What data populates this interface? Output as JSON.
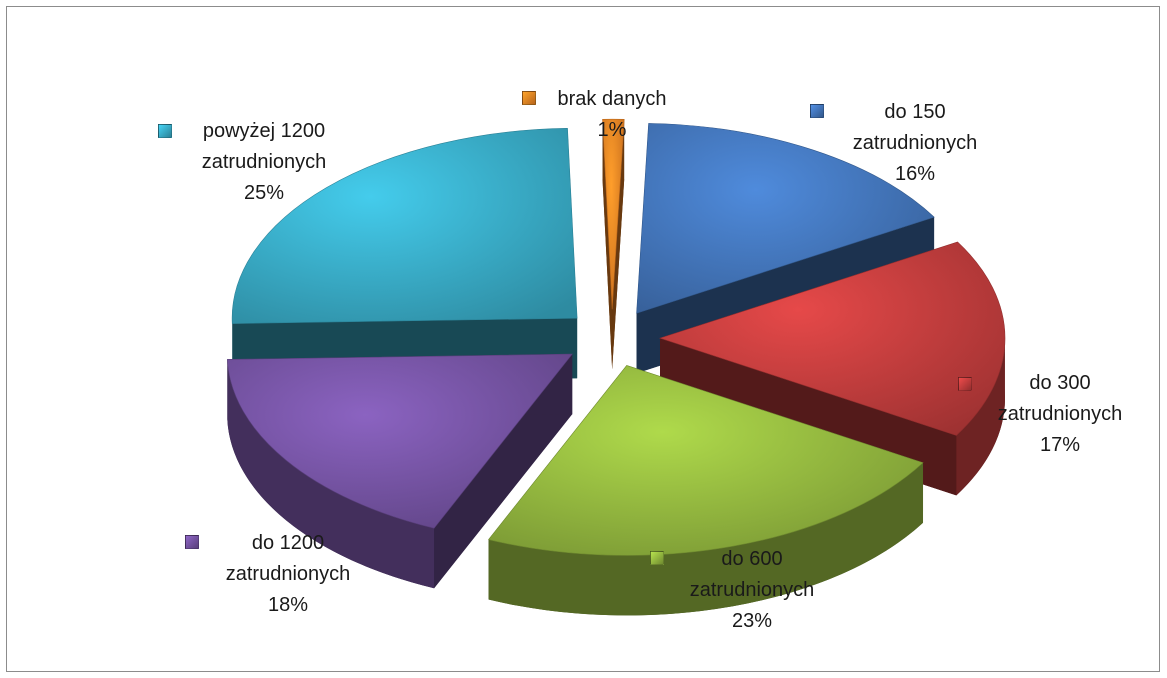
{
  "chart_data": {
    "type": "pie",
    "title": "",
    "slices": [
      {
        "label_lines": [
          "do 150",
          "zatrudnionych"
        ],
        "percent_text": "16%",
        "value": 16,
        "color": "#3f6fb0"
      },
      {
        "label_lines": [
          "do 300",
          "zatrudnionych"
        ],
        "percent_text": "17%",
        "value": 17,
        "color": "#b83a3a"
      },
      {
        "label_lines": [
          "do 600",
          "zatrudnionych"
        ],
        "percent_text": "23%",
        "value": 23,
        "color": "#8cae3c"
      },
      {
        "label_lines": [
          "do 1200",
          "zatrudnionych"
        ],
        "percent_text": "18%",
        "value": 18,
        "color": "#6f4f9a"
      },
      {
        "label_lines": [
          "powyżej 1200",
          "zatrudnionych"
        ],
        "percent_text": "25%",
        "value": 25,
        "color": "#36a3bd"
      },
      {
        "label_lines": [
          "brak danych"
        ],
        "percent_text": "1%",
        "value": 1,
        "color": "#e67e22"
      }
    ],
    "legend": "none",
    "style": "3d-exploded"
  }
}
